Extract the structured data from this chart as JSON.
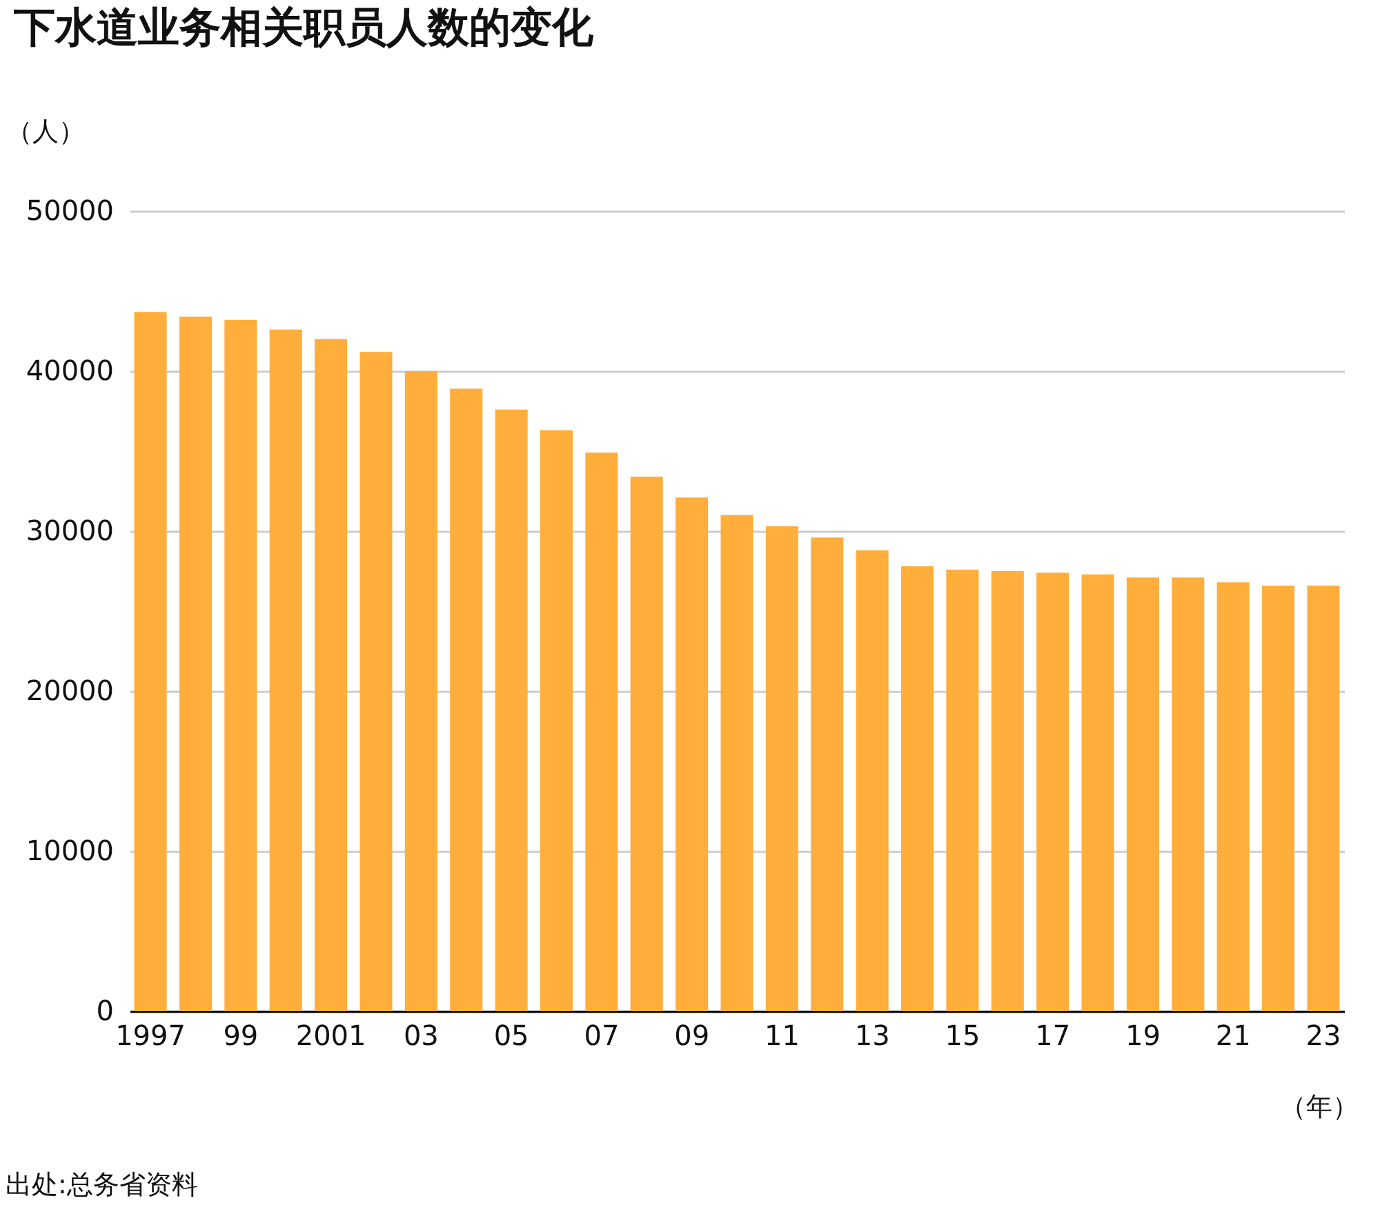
{
  "chart_data": {
    "type": "bar",
    "title": "下水道业务相关职员人数的变化",
    "ylabel": "（人）",
    "xlabel": "（年）",
    "categories": [
      "1997",
      null,
      "99",
      null,
      "2001",
      null,
      "03",
      null,
      "05",
      null,
      "07",
      null,
      "09",
      null,
      "11",
      null,
      "13",
      null,
      "15",
      null,
      "17",
      null,
      "19",
      null,
      "21",
      null,
      "23"
    ],
    "values": [
      43700,
      43400,
      43200,
      42600,
      42000,
      41200,
      40000,
      38900,
      37600,
      36300,
      34900,
      33400,
      32100,
      31000,
      30300,
      29600,
      28800,
      27800,
      27600,
      27500,
      27400,
      27300,
      27100,
      27100,
      26800,
      26600,
      26600
    ],
    "color": "#ffae3b",
    "ylim": [
      0,
      50000
    ],
    "yticks": [
      0,
      10000,
      20000,
      30000,
      40000,
      50000
    ],
    "grid": "y",
    "annotations": [
      "出处:总务省资料"
    ]
  }
}
